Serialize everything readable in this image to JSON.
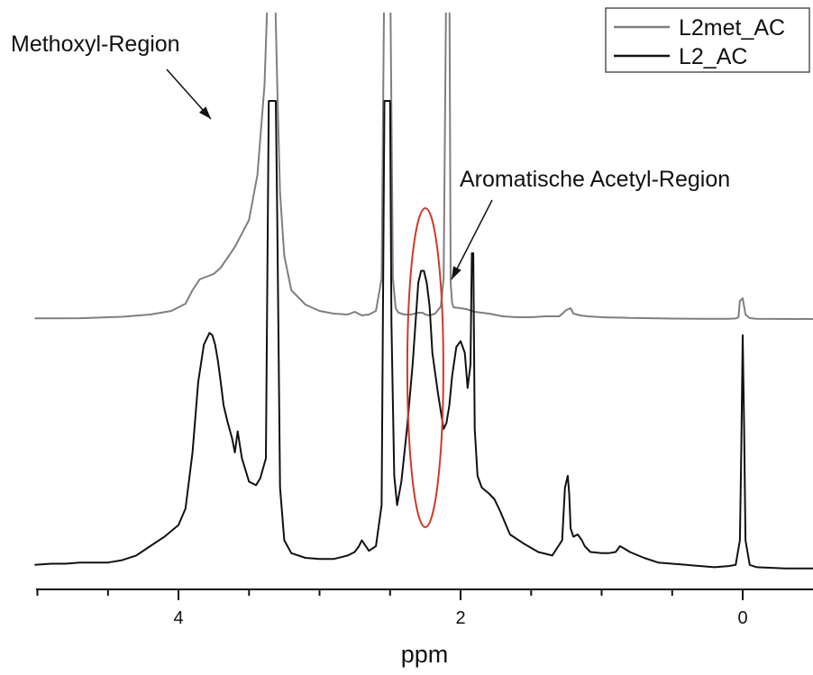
{
  "chart_data": {
    "type": "line",
    "title": "",
    "xlabel": "ppm",
    "ylabel": "",
    "xlim": [
      5.02,
      -0.5
    ],
    "x_reversed": true,
    "xticks": [
      4,
      2,
      0
    ],
    "xtick_labels": [
      "4",
      "2",
      "0"
    ],
    "grid": false,
    "legend_position": "top-right",
    "annotations": [
      {
        "text": "Methoxyl-Region",
        "arrow_to_ppm": 3.75,
        "series": "L2met_AC"
      },
      {
        "text": "Aromatische Acetyl-Region",
        "arrow_to_ppm": 2.1,
        "series": "L2met_AC"
      }
    ],
    "highlight": {
      "shape": "ellipse",
      "center_ppm": 2.25,
      "color": "#d03a2a"
    },
    "series": [
      {
        "name": "L2met_AC",
        "color": "#7f7f7f",
        "x": [
          5.02,
          4.7,
          4.4,
          4.2,
          4.05,
          3.95,
          3.9,
          3.85,
          3.8,
          3.75,
          3.7,
          3.6,
          3.5,
          3.44,
          3.39,
          3.36,
          3.34,
          3.32,
          3.3,
          3.28,
          3.25,
          3.2,
          3.1,
          3.0,
          2.9,
          2.8,
          2.75,
          2.7,
          2.65,
          2.6,
          2.56,
          2.54,
          2.52,
          2.5,
          2.48,
          2.46,
          2.44,
          2.4,
          2.35,
          2.3,
          2.27,
          2.25,
          2.22,
          2.18,
          2.14,
          2.12,
          2.1,
          2.09,
          2.08,
          2.07,
          2.06,
          2.05,
          2.0,
          1.96,
          1.9,
          1.8,
          1.7,
          1.6,
          1.5,
          1.4,
          1.3,
          1.25,
          1.22,
          1.2,
          1.15,
          1.1,
          1.0,
          0.95,
          0.85,
          0.8,
          0.7,
          0.5,
          0.3,
          0.1,
          0.05,
          0.03,
          0.02,
          0.0,
          -0.02,
          -0.05,
          -0.1,
          -0.5
        ],
        "y": [
          0.8,
          0.9,
          2.5,
          5,
          9,
          17,
          32,
          44,
          47,
          50,
          57,
          80,
          110,
          160,
          260,
          400,
          400,
          400,
          260,
          140,
          70,
          32,
          16,
          9,
          6,
          5,
          8,
          4,
          5,
          9,
          45,
          400,
          400,
          400,
          45,
          12,
          7,
          5,
          5,
          7,
          7,
          5,
          4,
          6,
          14,
          45,
          400,
          400,
          400,
          40,
          18,
          13,
          12,
          11,
          8,
          6,
          3,
          2,
          2,
          3,
          3,
          10,
          12,
          6,
          4,
          3,
          2,
          1.8,
          1.5,
          1.2,
          1.0,
          0.5,
          0.3,
          0.3,
          0.6,
          2,
          20,
          23,
          5,
          1,
          0.3,
          0
        ]
      },
      {
        "name": "L2_AC",
        "color": "#111111",
        "x": [
          5.02,
          4.9,
          4.8,
          4.7,
          4.6,
          4.5,
          4.4,
          4.3,
          4.2,
          4.1,
          4.0,
          3.95,
          3.9,
          3.86,
          3.82,
          3.78,
          3.76,
          3.74,
          3.72,
          3.7,
          3.68,
          3.65,
          3.62,
          3.6,
          3.58,
          3.55,
          3.5,
          3.45,
          3.42,
          3.38,
          3.36,
          3.35,
          3.33,
          3.31,
          3.3,
          3.28,
          3.25,
          3.2,
          3.1,
          3.0,
          2.9,
          2.8,
          2.75,
          2.72,
          2.7,
          2.65,
          2.6,
          2.56,
          2.54,
          2.53,
          2.51,
          2.5,
          2.49,
          2.47,
          2.45,
          2.42,
          2.38,
          2.34,
          2.3,
          2.28,
          2.26,
          2.24,
          2.22,
          2.2,
          2.16,
          2.12,
          2.1,
          2.08,
          2.06,
          2.03,
          2.0,
          1.97,
          1.95,
          1.93,
          1.92,
          1.91,
          1.9,
          1.88,
          1.85,
          1.8,
          1.76,
          1.72,
          1.65,
          1.55,
          1.45,
          1.35,
          1.28,
          1.26,
          1.24,
          1.23,
          1.22,
          1.2,
          1.17,
          1.14,
          1.12,
          1.08,
          1.0,
          0.95,
          0.9,
          0.87,
          0.84,
          0.8,
          0.7,
          0.6,
          0.4,
          0.2,
          0.1,
          0.05,
          0.02,
          0.01,
          0.0,
          -0.01,
          -0.02,
          -0.05,
          -0.1,
          -0.3,
          -0.5
        ],
        "y": [
          4,
          5,
          5,
          6,
          6,
          6,
          8,
          12,
          20,
          28,
          38,
          52,
          100,
          160,
          192,
          202,
          200,
          192,
          178,
          160,
          140,
          125,
          112,
          100,
          118,
          95,
          75,
          72,
          78,
          95,
          400,
          400,
          400,
          400,
          300,
          70,
          25,
          14,
          10,
          9,
          9,
          12,
          15,
          20,
          25,
          16,
          20,
          55,
          400,
          400,
          400,
          400,
          210,
          80,
          55,
          75,
          120,
          175,
          245,
          255,
          255,
          245,
          225,
          185,
          150,
          120,
          125,
          140,
          165,
          190,
          195,
          185,
          155,
          175,
          270,
          270,
          120,
          80,
          70,
          65,
          60,
          50,
          30,
          22,
          15,
          12,
          25,
          70,
          80,
          65,
          35,
          28,
          30,
          25,
          20,
          15,
          14,
          14,
          15,
          20,
          18,
          15,
          10,
          6,
          4,
          2,
          3,
          4,
          25,
          100,
          200,
          120,
          25,
          4,
          2,
          1,
          1
        ]
      }
    ]
  }
}
